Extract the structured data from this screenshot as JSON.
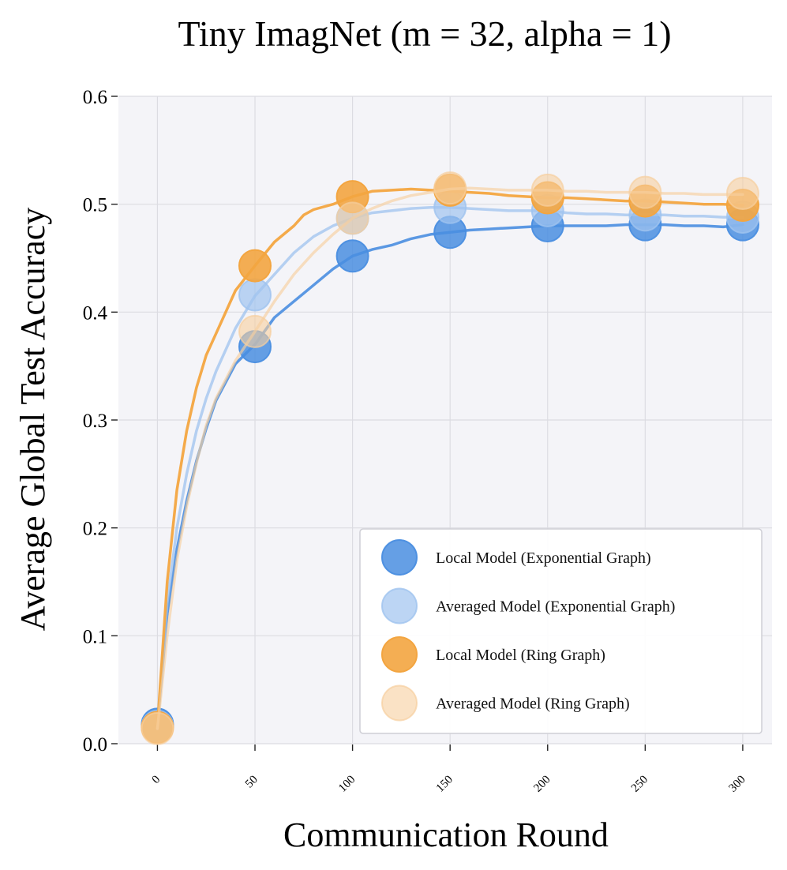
{
  "chart_data": {
    "type": "line",
    "title": "Tiny ImagNet (m = 32, alpha = 1)",
    "xlabel": "Communication Round",
    "ylabel": "Average Global Test Accuracy",
    "xlim": [
      -20,
      315
    ],
    "ylim": [
      0,
      0.6
    ],
    "xticks": [
      0,
      50,
      100,
      150,
      200,
      250,
      300
    ],
    "xtick_labels": [
      "0",
      "50",
      "100",
      "150",
      "200",
      "250",
      "300"
    ],
    "yticks": [
      0,
      0.1,
      0.2,
      0.3,
      0.4,
      0.5,
      0.6
    ],
    "ytick_labels": [
      "0.0",
      "0.1",
      "0.2",
      "0.3",
      "0.4",
      "0.5",
      "0.6"
    ],
    "grid": true,
    "legend_position": "lower-right",
    "series": [
      {
        "name": "Local Model (Exponential Graph)",
        "color": "#4a8ee0",
        "alpha": 0.85,
        "x": [
          0,
          5,
          10,
          15,
          20,
          25,
          30,
          40,
          50,
          60,
          70,
          80,
          90,
          100,
          110,
          120,
          130,
          140,
          150,
          160,
          170,
          180,
          190,
          200,
          210,
          220,
          230,
          240,
          250,
          260,
          270,
          280,
          290,
          300
        ],
        "y": [
          0.018,
          0.12,
          0.18,
          0.225,
          0.262,
          0.292,
          0.318,
          0.352,
          0.37,
          0.395,
          0.41,
          0.425,
          0.44,
          0.452,
          0.458,
          0.462,
          0.468,
          0.472,
          0.474,
          0.476,
          0.477,
          0.478,
          0.479,
          0.48,
          0.48,
          0.48,
          0.48,
          0.481,
          0.481,
          0.481,
          0.48,
          0.48,
          0.479,
          0.481
        ],
        "markers_x": [
          0,
          50,
          100,
          150,
          200,
          250,
          300
        ],
        "markers_y": [
          0.018,
          0.368,
          0.452,
          0.474,
          0.48,
          0.481,
          0.481
        ]
      },
      {
        "name": "Averaged Model (Exponential Graph)",
        "color": "#9fc3ef",
        "alpha": 0.7,
        "x": [
          0,
          5,
          10,
          15,
          20,
          25,
          30,
          40,
          50,
          60,
          70,
          80,
          90,
          100,
          110,
          120,
          130,
          140,
          150,
          160,
          170,
          180,
          190,
          200,
          210,
          220,
          230,
          240,
          250,
          260,
          270,
          280,
          290,
          300
        ],
        "y": [
          0.017,
          0.13,
          0.2,
          0.25,
          0.29,
          0.32,
          0.345,
          0.385,
          0.415,
          0.435,
          0.455,
          0.47,
          0.48,
          0.487,
          0.492,
          0.494,
          0.496,
          0.497,
          0.497,
          0.496,
          0.495,
          0.494,
          0.494,
          0.494,
          0.492,
          0.491,
          0.491,
          0.49,
          0.49,
          0.49,
          0.489,
          0.489,
          0.488,
          0.488
        ],
        "markers_x": [
          0,
          50,
          100,
          150,
          200,
          250,
          300
        ],
        "markers_y": [
          0.016,
          0.416,
          0.487,
          0.497,
          0.494,
          0.49,
          0.488
        ]
      },
      {
        "name": "Local Model (Ring Graph)",
        "color": "#f3a540",
        "alpha": 0.9,
        "x": [
          0,
          5,
          10,
          15,
          20,
          25,
          30,
          40,
          50,
          60,
          70,
          75,
          80,
          90,
          100,
          110,
          120,
          130,
          140,
          150,
          160,
          170,
          180,
          190,
          200,
          210,
          220,
          230,
          240,
          250,
          260,
          270,
          280,
          290,
          300
        ],
        "y": [
          0.015,
          0.15,
          0.235,
          0.29,
          0.33,
          0.36,
          0.38,
          0.42,
          0.443,
          0.465,
          0.48,
          0.49,
          0.495,
          0.5,
          0.507,
          0.512,
          0.513,
          0.514,
          0.513,
          0.512,
          0.511,
          0.51,
          0.508,
          0.507,
          0.506,
          0.506,
          0.505,
          0.504,
          0.503,
          0.503,
          0.502,
          0.501,
          0.5,
          0.5,
          0.499
        ],
        "markers_x": [
          0,
          50,
          100,
          150,
          200,
          250,
          300
        ],
        "markers_y": [
          0.015,
          0.443,
          0.507,
          0.513,
          0.506,
          0.503,
          0.499
        ]
      },
      {
        "name": "Averaged Model (Ring Graph)",
        "color": "#f7cf9e",
        "alpha": 0.6,
        "x": [
          0,
          5,
          10,
          15,
          20,
          25,
          30,
          40,
          50,
          60,
          70,
          80,
          90,
          100,
          110,
          120,
          130,
          140,
          150,
          160,
          170,
          180,
          190,
          200,
          210,
          220,
          230,
          240,
          250,
          260,
          270,
          280,
          290,
          300
        ],
        "y": [
          0.014,
          0.1,
          0.17,
          0.22,
          0.26,
          0.295,
          0.32,
          0.355,
          0.382,
          0.41,
          0.435,
          0.455,
          0.472,
          0.487,
          0.496,
          0.503,
          0.508,
          0.511,
          0.514,
          0.515,
          0.514,
          0.513,
          0.513,
          0.513,
          0.512,
          0.512,
          0.511,
          0.511,
          0.511,
          0.51,
          0.51,
          0.509,
          0.509,
          0.509
        ],
        "markers_x": [
          0,
          50,
          100,
          150,
          200,
          250,
          300
        ],
        "markers_y": [
          0.014,
          0.382,
          0.487,
          0.515,
          0.513,
          0.511,
          0.51
        ]
      }
    ]
  }
}
